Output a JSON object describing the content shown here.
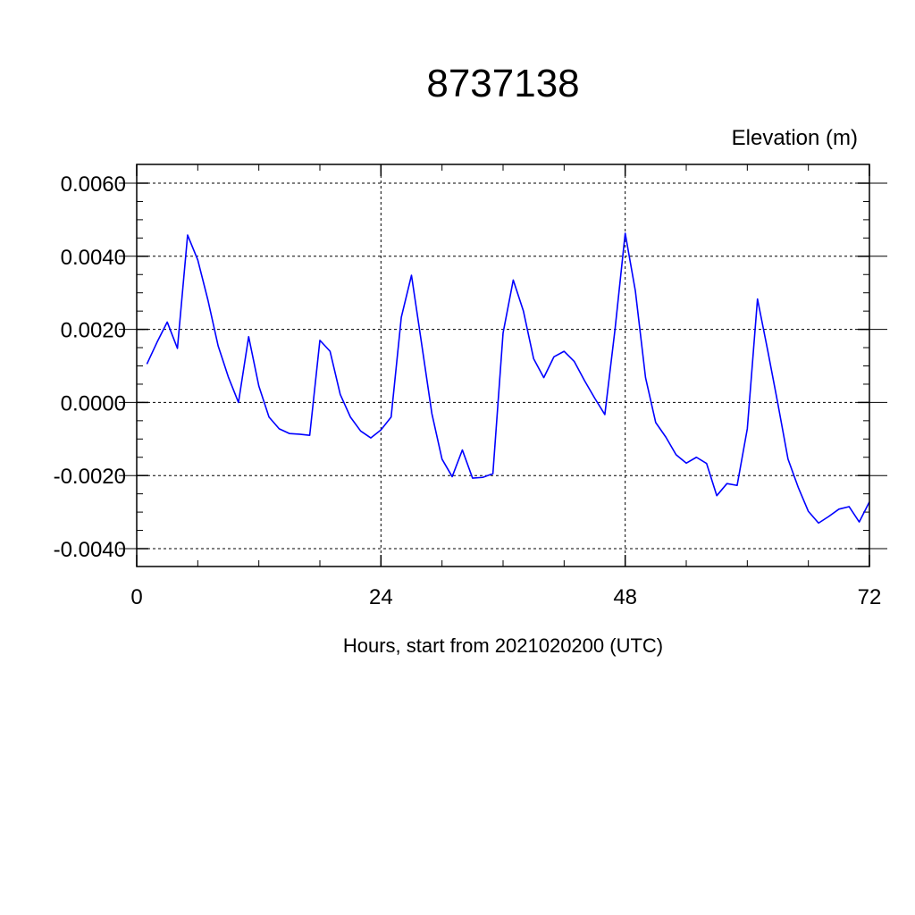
{
  "chart_data": {
    "type": "line",
    "title": "8737138",
    "ylabel": "Elevation (m)",
    "xlabel": "Hours, start from 2021020200 (UTC)",
    "xlim": [
      0,
      72
    ],
    "ylim": [
      -0.004,
      0.006
    ],
    "x_ticks": [
      0,
      24,
      48,
      72
    ],
    "x_tick_labels": [
      "0",
      "24",
      "48",
      "72"
    ],
    "y_ticks": [
      0.006,
      0.004,
      0.002,
      0.0,
      -0.002,
      -0.004
    ],
    "y_tick_labels": [
      "0.0060",
      "0.0040",
      "0.0020",
      "0.0000",
      "-0.0020",
      "-0.0040"
    ],
    "grid": true,
    "line_color": "#0000ff",
    "series": [
      {
        "x": [
          1,
          2,
          3,
          4,
          5,
          6,
          7,
          8,
          9,
          10,
          11,
          12,
          13,
          14,
          15,
          16,
          17,
          18,
          19,
          20,
          21,
          22,
          23,
          24,
          25,
          26,
          27,
          28,
          29,
          30,
          31,
          32,
          33,
          34,
          35,
          36,
          37,
          38,
          39,
          40,
          41,
          42,
          43,
          44,
          45,
          46,
          47,
          48,
          49,
          50,
          51,
          52,
          53,
          54,
          55,
          56,
          57,
          58,
          59,
          60,
          61,
          62,
          63,
          64,
          65,
          66,
          67,
          68,
          69,
          70,
          71,
          72
        ],
        "values": [
          0.00105,
          0.00165,
          0.0022,
          0.00148,
          0.00458,
          0.0039,
          0.0028,
          0.00155,
          0.0007,
          0.0,
          0.0018,
          0.00045,
          -0.0004,
          -0.00072,
          -0.00085,
          -0.00087,
          -0.0009,
          0.0017,
          0.0014,
          0.00022,
          -0.0004,
          -0.00078,
          -0.00097,
          -0.00075,
          -0.0004,
          0.00233,
          0.00348,
          0.0016,
          -0.0003,
          -0.00155,
          -0.00203,
          -0.0013,
          -0.00207,
          -0.00205,
          -0.00195,
          0.0019,
          0.00335,
          0.0025,
          0.0012,
          0.00068,
          0.00125,
          0.0014,
          0.00112,
          0.0006,
          0.00012,
          -0.00033,
          0.002,
          0.00463,
          0.00305,
          0.00068,
          -0.00055,
          -0.00095,
          -0.00143,
          -0.00166,
          -0.0015,
          -0.00167,
          -0.00255,
          -0.00222,
          -0.00227,
          -0.00072,
          0.00283,
          0.00143,
          -3e-05,
          -0.00155,
          -0.00232,
          -0.00298,
          -0.0033,
          -0.00312,
          -0.00292,
          -0.00285,
          -0.00327,
          -0.00272
        ]
      }
    ]
  }
}
